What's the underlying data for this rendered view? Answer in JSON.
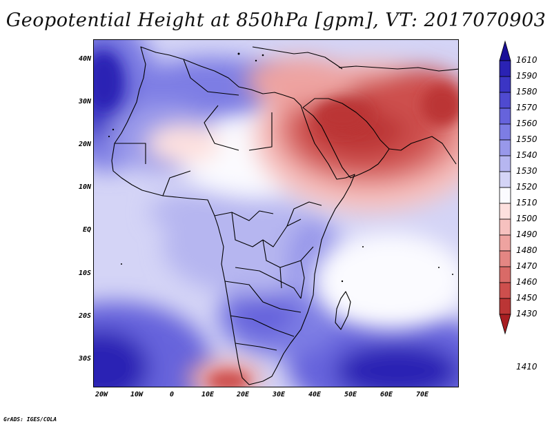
{
  "title": "Geopotential Height at 850hPa [gpm], VT: 2017070903",
  "credit": "GrADS: IGES/COLA",
  "axes": {
    "lat_labels": [
      "40N",
      "30N",
      "20N",
      "10N",
      "EQ",
      "10S",
      "20S",
      "30S"
    ],
    "lon_labels": [
      "20W",
      "10W",
      "0",
      "10E",
      "20E",
      "30E",
      "40E",
      "50E",
      "60E",
      "70E"
    ]
  },
  "colorbar": {
    "levels": [
      "1610",
      "1590",
      "1580",
      "1570",
      "1560",
      "1550",
      "1540",
      "1530",
      "1520",
      "1510",
      "1500",
      "1490",
      "1480",
      "1470",
      "1460",
      "1450",
      "1430",
      "1410"
    ],
    "colors": [
      "#1a0f98",
      "#2a22b4",
      "#3b35c4",
      "#4f4ad0",
      "#6663dc",
      "#7d7de4",
      "#9898ea",
      "#b6b6f0",
      "#d4d4f6",
      "#fbfbff",
      "#fde0de",
      "#f6c1bf",
      "#eea3a0",
      "#e48683",
      "#d96a67",
      "#cd4f4d",
      "#bb3535",
      "#a81e22"
    ]
  }
}
